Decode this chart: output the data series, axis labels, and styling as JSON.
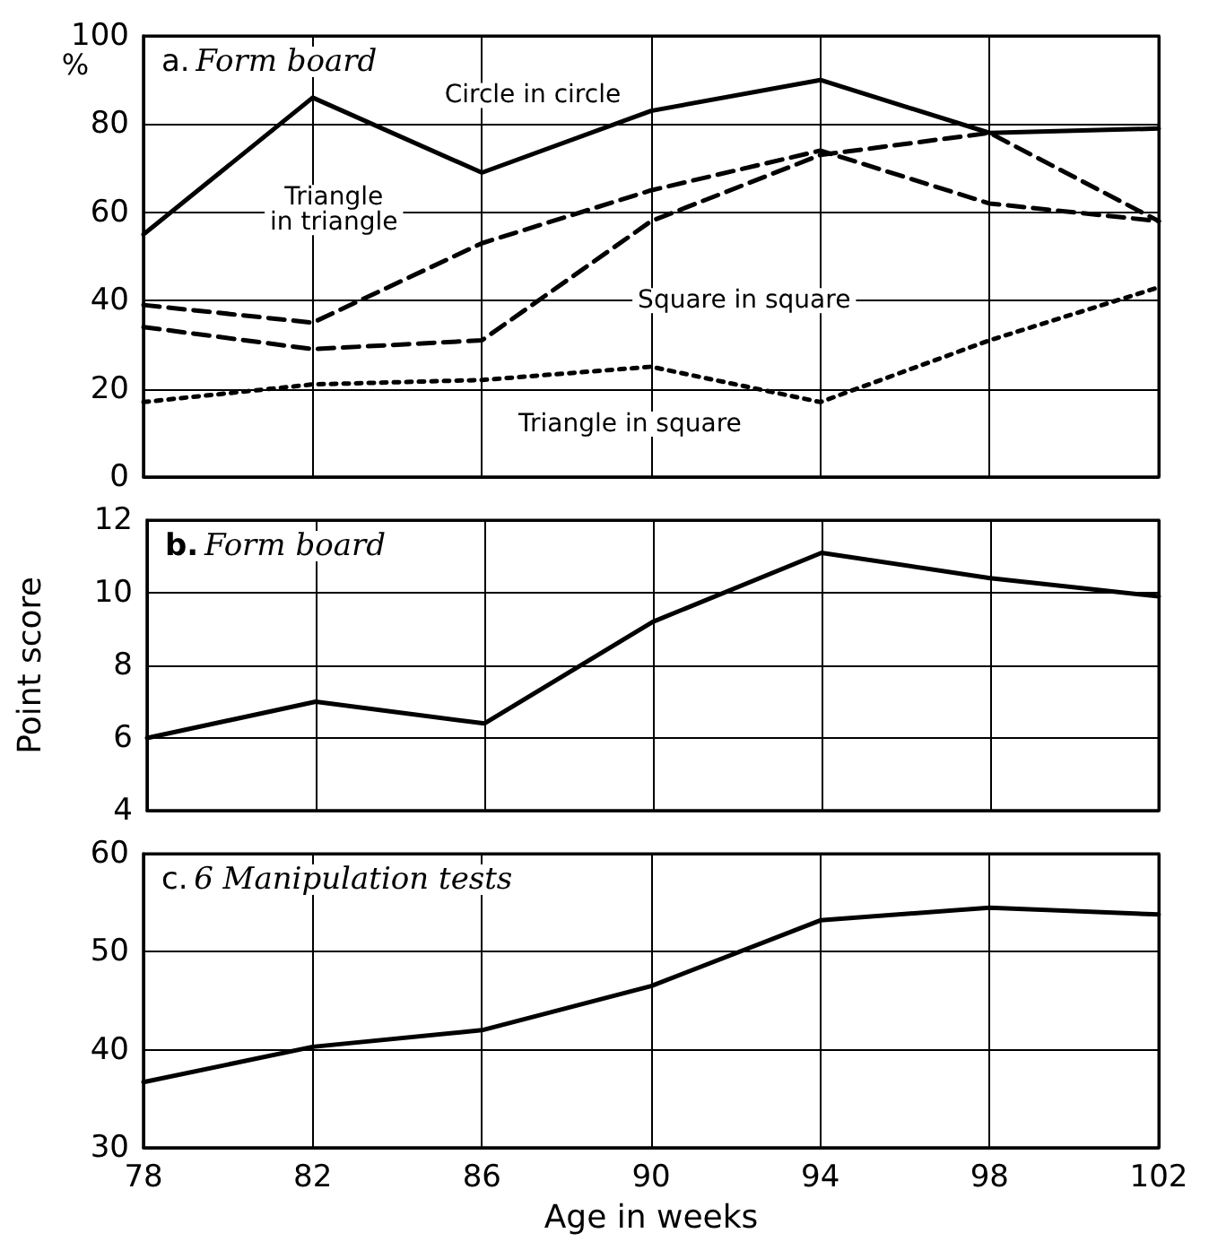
{
  "chart_data": [
    {
      "type": "line",
      "title": "a. Form board",
      "ylabel": "%",
      "x": [
        78,
        82,
        86,
        90,
        94,
        98,
        102
      ],
      "xlim": [
        78,
        102
      ],
      "xticks": [
        78,
        82,
        86,
        90,
        94,
        98,
        102
      ],
      "ylim": [
        0,
        100
      ],
      "yticks": [
        0,
        20,
        40,
        60,
        80,
        100
      ],
      "grid": true,
      "tick_labels": "y",
      "marker": "none",
      "series": [
        {
          "name": "Circle in circle",
          "color": "#000000",
          "line_style": "solid",
          "values": [
            55,
            86,
            69,
            83,
            90,
            78,
            79
          ]
        },
        {
          "name": "Triangle in triangle",
          "color": "#000000",
          "line_style": "dashed",
          "values": [
            39,
            35,
            53,
            65,
            74,
            62,
            58
          ]
        },
        {
          "name": "Square in square",
          "color": "#000000",
          "line_style": "dashed",
          "values": [
            34,
            29,
            31,
            58,
            73,
            78,
            58
          ]
        },
        {
          "name": "Triangle in square",
          "color": "#000000",
          "line_style": "dotted",
          "values": [
            17,
            21,
            22,
            25,
            17,
            31,
            43
          ]
        }
      ]
    },
    {
      "type": "line",
      "title": "b. Form board",
      "ylabel": "Point score",
      "x": [
        78,
        82,
        86,
        90,
        94,
        98,
        102
      ],
      "xlim": [
        78,
        102
      ],
      "xticks": [
        78,
        82,
        86,
        90,
        94,
        98,
        102
      ],
      "ylim": [
        4,
        12
      ],
      "yticks": [
        4,
        6,
        8,
        10,
        12
      ],
      "grid": true,
      "tick_labels": "y",
      "marker": "none",
      "series": [
        {
          "color": "#000000",
          "line_style": "solid",
          "values": [
            6.0,
            7.0,
            6.4,
            9.2,
            11.1,
            10.4,
            9.9
          ]
        }
      ]
    },
    {
      "type": "line",
      "title": "c. 6 Manipulation tests",
      "xlabel": "Age in weeks",
      "x": [
        78,
        82,
        86,
        90,
        94,
        98,
        102
      ],
      "xlim": [
        78,
        102
      ],
      "xticks": [
        78,
        82,
        86,
        90,
        94,
        98,
        102
      ],
      "ylim": [
        30,
        60
      ],
      "yticks": [
        30,
        40,
        50,
        60
      ],
      "grid": true,
      "marker": "none",
      "series": [
        {
          "color": "#000000",
          "line_style": "solid",
          "values": [
            36.7,
            40.3,
            42,
            46.5,
            53.2,
            54.5,
            53.8
          ]
        }
      ]
    }
  ]
}
